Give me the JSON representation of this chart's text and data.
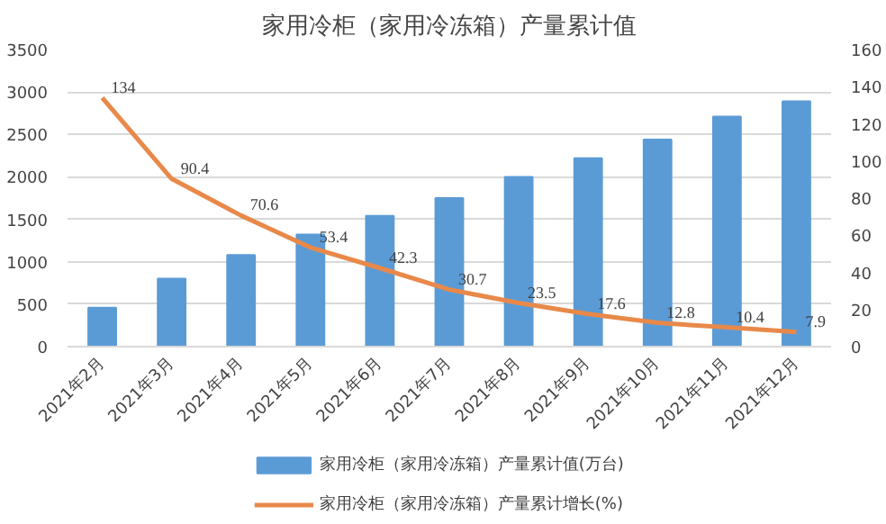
{
  "chart_data": {
    "type": "bar",
    "title": "家用冷柜（家用冷冻箱）产量累计值",
    "categories": [
      "2021年2月",
      "2021年3月",
      "2021年4月",
      "2021年5月",
      "2021年6月",
      "2021年7月",
      "2021年8月",
      "2021年9月",
      "2021年10月",
      "2021年11月",
      "2021年12月"
    ],
    "series": [
      {
        "name": "家用冷柜（家用冷冻箱）产量累计值(万台)",
        "type": "bar",
        "color": "#5b9bd5",
        "values": [
          460,
          800,
          1080,
          1320,
          1540,
          1750,
          2000,
          2220,
          2440,
          2710,
          2890
        ]
      },
      {
        "name": "家用冷柜（家用冷冻箱）产量累计增长(%)",
        "type": "line",
        "axis": "y2",
        "color": "#e8894a",
        "data_labels": true,
        "values": [
          134,
          90.4,
          70.6,
          53.4,
          42.3,
          30.7,
          23.5,
          17.6,
          12.8,
          10.4,
          7.9
        ]
      }
    ],
    "ylim": [
      0,
      3500
    ],
    "yticks": [
      0,
      500,
      1000,
      1500,
      2000,
      2500,
      3000,
      3500
    ],
    "y2lim": [
      0,
      160
    ],
    "y2ticks": [
      0,
      20,
      40,
      60,
      80,
      100,
      120,
      140,
      160
    ],
    "grid": "y",
    "legend": "bottom"
  }
}
